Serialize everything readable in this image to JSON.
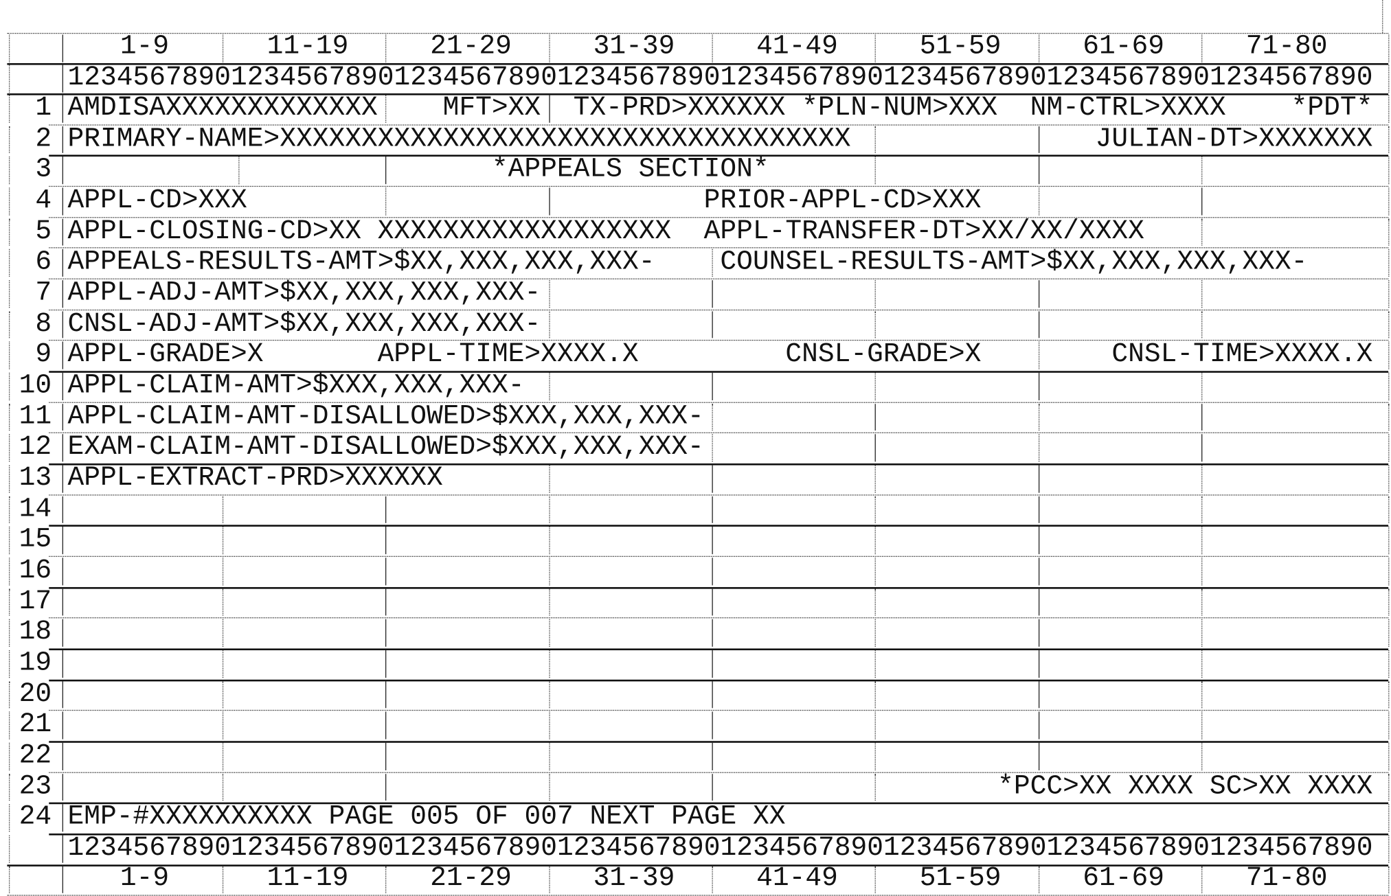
{
  "header_groups": [
    "1-9",
    "11-19",
    "21-29",
    "31-39",
    "41-49",
    "51-59",
    "61-69",
    "71-80"
  ],
  "ruler": "12345678901234567890123456789012345678901234567890123456789012345678901234567890",
  "rows": [
    {
      "num": "1",
      "fields": [
        "AMDISAXXXXXXXXXXXXX",
        "MFT>XX",
        "TX-PRD>XXXXXX",
        "*PLN-NUM>XXX",
        "NM-CTRL>XXXX",
        "*PDT*"
      ]
    },
    {
      "num": "2",
      "fields": [
        "PRIMARY-NAME>XXXXXXXXXXXXXXXXXXXXXXXXXXXXXXXXXXX",
        "JULIAN-DT>XXXXXXX"
      ]
    },
    {
      "num": "3",
      "fields": [
        "*APPEALS SECTION*"
      ]
    },
    {
      "num": "4",
      "fields": [
        "APPL-CD>XXX",
        "PRIOR-APPL-CD>XXX"
      ]
    },
    {
      "num": "5",
      "fields": [
        "APPL-CLOSING-CD>XX",
        "XXXXXXXXXXXXXXXXXX",
        "APPL-TRANSFER-DT>XX/XX/XXXX"
      ]
    },
    {
      "num": "6",
      "fields": [
        "APPEALS-RESULTS-AMT>$XX,XXX,XXX,XXX-",
        "COUNSEL-RESULTS-AMT>$XX,XXX,XXX,XXX-"
      ]
    },
    {
      "num": "7",
      "fields": [
        "APPL-ADJ-AMT>$XX,XXX,XXX,XXX-"
      ]
    },
    {
      "num": "8",
      "fields": [
        "CNSL-ADJ-AMT>$XX,XXX,XXX,XXX-"
      ]
    },
    {
      "num": "9",
      "fields": [
        "APPL-GRADE>X",
        "APPL-TIME>XXXX.X",
        "CNSL-GRADE>X",
        "CNSL-TIME>XXXX.X"
      ]
    },
    {
      "num": "10",
      "fields": [
        "APPL-CLAIM-AMT>$XXX,XXX,XXX-"
      ]
    },
    {
      "num": "11",
      "fields": [
        "APPL-CLAIM-AMT-DISALLOWED>$XXX,XXX,XXX-"
      ]
    },
    {
      "num": "12",
      "fields": [
        "EXAM-CLAIM-AMT-DISALLOWED>$XXX,XXX,XXX-"
      ]
    },
    {
      "num": "13",
      "fields": [
        "APPL-EXTRACT-PRD>XXXXXX"
      ]
    },
    {
      "num": "14",
      "fields": []
    },
    {
      "num": "15",
      "fields": []
    },
    {
      "num": "16",
      "fields": []
    },
    {
      "num": "17",
      "fields": []
    },
    {
      "num": "18",
      "fields": []
    },
    {
      "num": "19",
      "fields": []
    },
    {
      "num": "20",
      "fields": []
    },
    {
      "num": "21",
      "fields": []
    },
    {
      "num": "22",
      "fields": []
    },
    {
      "num": "23",
      "fields": [
        "*PCC>XX XXXX SC>XX XXXX"
      ]
    },
    {
      "num": "24",
      "fields": [
        "EMP-#XXXXXXXXXX PAGE 005 OF 007 NEXT PAGE XX"
      ]
    }
  ]
}
